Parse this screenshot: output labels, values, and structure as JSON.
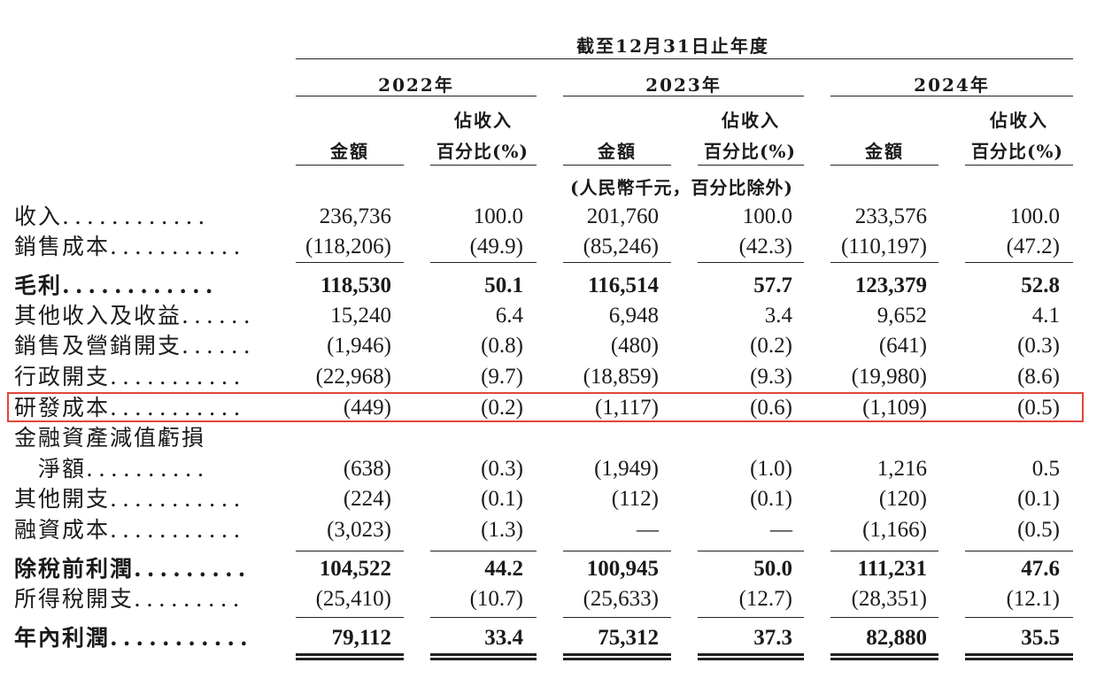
{
  "header": {
    "period": "截至12月31日止年度",
    "years": [
      "2022年",
      "2023年",
      "2024年"
    ],
    "col_amount": "金額",
    "col_pct_line1": "佔收入",
    "col_pct_line2": "百分比(%)",
    "unit_note": "(人民幣千元，百分比除外)"
  },
  "rows": [
    {
      "label": "收入",
      "dots": "............",
      "cells": [
        "236,736",
        "100.0",
        "201,760",
        "100.0",
        "233,576",
        "100.0"
      ],
      "bold": false
    },
    {
      "label": "銷售成本",
      "dots": "...........",
      "cells": [
        "(118,206)",
        "(49.9)",
        "(85,246)",
        "(42.3)",
        "(110,197)",
        "(47.2)"
      ],
      "bold": false
    },
    {
      "label": "毛利",
      "dots": "............",
      "cells": [
        "118,530",
        "50.1",
        "116,514",
        "57.7",
        "123,379",
        "52.8"
      ],
      "bold": true
    },
    {
      "label": "其他收入及收益",
      "dots": "......",
      "cells": [
        "15,240",
        "6.4",
        "6,948",
        "3.4",
        "9,652",
        "4.1"
      ],
      "bold": false
    },
    {
      "label": "銷售及營銷開支",
      "dots": "......",
      "cells": [
        "(1,946)",
        "(0.8)",
        "(480)",
        "(0.2)",
        "(641)",
        "(0.3)"
      ],
      "bold": false
    },
    {
      "label": "行政開支",
      "dots": "...........",
      "cells": [
        "(22,968)",
        "(9.7)",
        "(18,859)",
        "(9.3)",
        "(19,980)",
        "(8.6)"
      ],
      "bold": false
    },
    {
      "label": "研發成本",
      "dots": "...........",
      "cells": [
        "(449)",
        "(0.2)",
        "(1,117)",
        "(0.6)",
        "(1,109)",
        "(0.5)"
      ],
      "bold": false
    },
    {
      "label": "金融資產減值虧損",
      "dots": "",
      "cells": [
        "",
        "",
        "",
        "",
        "",
        ""
      ],
      "bold": false
    },
    {
      "label": "　淨額",
      "dots": "..........",
      "cells": [
        "(638)",
        "(0.3)",
        "(1,949)",
        "(1.0)",
        "1,216",
        "0.5"
      ],
      "bold": false
    },
    {
      "label": "其他開支",
      "dots": "...........",
      "cells": [
        "(224)",
        "(0.1)",
        "(112)",
        "(0.1)",
        "(120)",
        "(0.1)"
      ],
      "bold": false
    },
    {
      "label": "融資成本",
      "dots": "...........",
      "cells": [
        "(3,023)",
        "(1.3)",
        "—",
        "—",
        "(1,166)",
        "(0.5)"
      ],
      "bold": false
    },
    {
      "label": "除稅前利潤",
      "dots": ".........",
      "cells": [
        "104,522",
        "44.2",
        "100,945",
        "50.0",
        "111,231",
        "47.6"
      ],
      "bold": true
    },
    {
      "label": "所得稅開支",
      "dots": ".........",
      "cells": [
        "(25,410)",
        "(10.7)",
        "(25,633)",
        "(12.7)",
        "(28,351)",
        "(12.1)"
      ],
      "bold": false
    },
    {
      "label": "年內利潤",
      "dots": "...........",
      "cells": [
        "79,112",
        "33.4",
        "75,312",
        "37.3",
        "82,880",
        "35.5"
      ],
      "bold": true
    }
  ]
}
